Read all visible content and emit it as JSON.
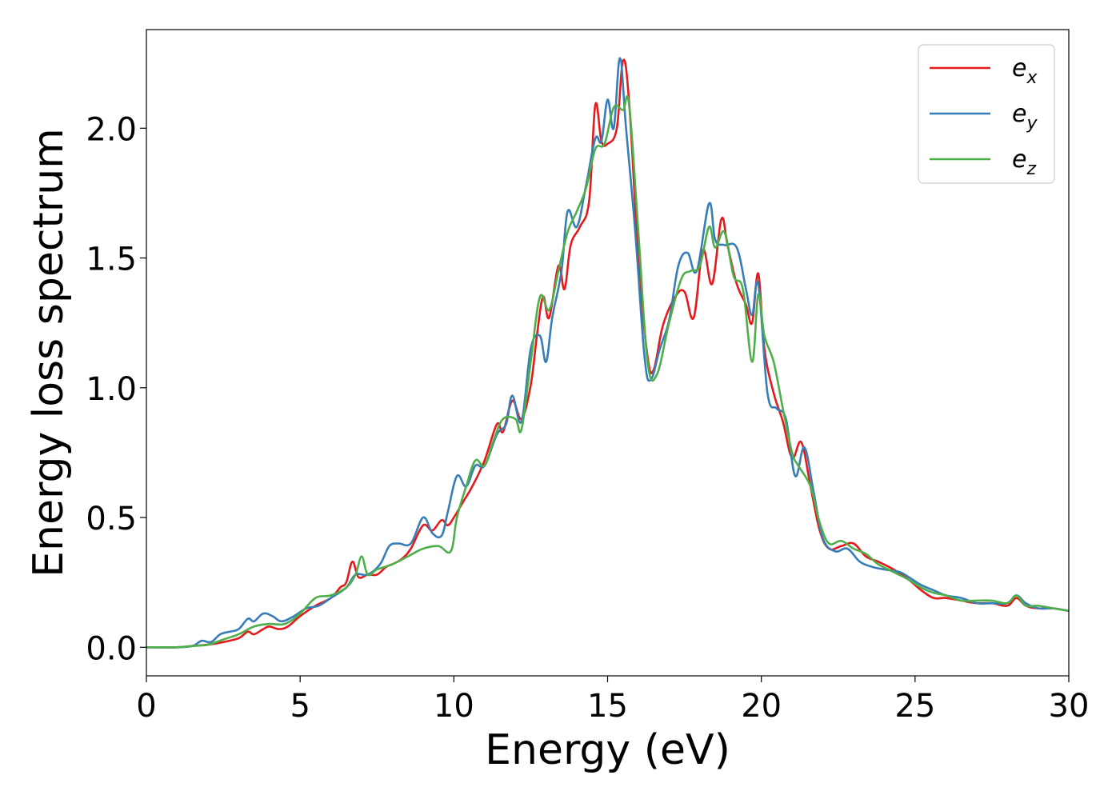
{
  "chart_data": {
    "type": "line",
    "title": "",
    "xlabel": "Energy (eV)",
    "ylabel": "Energy loss spectrum",
    "xlim": [
      0,
      30
    ],
    "ylim": [
      -0.11,
      2.38
    ],
    "xticks": [
      0,
      5,
      10,
      15,
      20,
      25,
      30
    ],
    "xtick_labels": [
      "0",
      "5",
      "10",
      "15",
      "20",
      "25",
      "30"
    ],
    "yticks": [
      0.0,
      0.5,
      1.0,
      1.5,
      2.0
    ],
    "ytick_labels": [
      "0.0",
      "0.5",
      "1.0",
      "1.5",
      "2.0"
    ],
    "grid": false,
    "legend_position": "top-right",
    "series": [
      {
        "name": "e_x",
        "legend_base": "e",
        "legend_sub": "x",
        "color": "#e41a1c",
        "points": [
          [
            0,
            0
          ],
          [
            1,
            0
          ],
          [
            1.5,
            0.005
          ],
          [
            2,
            0.01
          ],
          [
            2.5,
            0.02
          ],
          [
            3,
            0.035
          ],
          [
            3.3,
            0.06
          ],
          [
            3.5,
            0.05
          ],
          [
            3.8,
            0.07
          ],
          [
            4,
            0.08
          ],
          [
            4.3,
            0.07
          ],
          [
            4.6,
            0.08
          ],
          [
            5,
            0.12
          ],
          [
            5.5,
            0.16
          ],
          [
            6,
            0.19
          ],
          [
            6.3,
            0.23
          ],
          [
            6.5,
            0.25
          ],
          [
            6.7,
            0.33
          ],
          [
            6.9,
            0.27
          ],
          [
            7.2,
            0.28
          ],
          [
            7.5,
            0.28
          ],
          [
            7.8,
            0.31
          ],
          [
            8,
            0.32
          ],
          [
            8.3,
            0.34
          ],
          [
            8.6,
            0.38
          ],
          [
            9,
            0.47
          ],
          [
            9.3,
            0.45
          ],
          [
            9.6,
            0.49
          ],
          [
            9.8,
            0.47
          ],
          [
            10,
            0.5
          ],
          [
            10.3,
            0.56
          ],
          [
            10.6,
            0.62
          ],
          [
            11,
            0.72
          ],
          [
            11.4,
            0.86
          ],
          [
            11.6,
            0.83
          ],
          [
            11.9,
            0.95
          ],
          [
            12.2,
            0.88
          ],
          [
            12.5,
            1.01
          ],
          [
            12.7,
            1.2
          ],
          [
            12.9,
            1.35
          ],
          [
            13.1,
            1.27
          ],
          [
            13.4,
            1.47
          ],
          [
            13.6,
            1.38
          ],
          [
            13.8,
            1.55
          ],
          [
            14.1,
            1.62
          ],
          [
            14.4,
            1.72
          ],
          [
            14.6,
            2.09
          ],
          [
            14.8,
            1.95
          ],
          [
            15,
            1.94
          ],
          [
            15.3,
            2.0
          ],
          [
            15.5,
            2.26
          ],
          [
            15.7,
            2.1
          ],
          [
            16,
            1.5
          ],
          [
            16.3,
            1.12
          ],
          [
            16.5,
            1.07
          ],
          [
            16.8,
            1.24
          ],
          [
            17.2,
            1.35
          ],
          [
            17.5,
            1.37
          ],
          [
            17.8,
            1.27
          ],
          [
            18.1,
            1.53
          ],
          [
            18.4,
            1.4
          ],
          [
            18.7,
            1.65
          ],
          [
            18.9,
            1.55
          ],
          [
            19.2,
            1.4
          ],
          [
            19.5,
            1.32
          ],
          [
            19.7,
            1.25
          ],
          [
            19.9,
            1.44
          ],
          [
            20.1,
            1.15
          ],
          [
            20.4,
            0.98
          ],
          [
            20.7,
            0.87
          ],
          [
            21,
            0.73
          ],
          [
            21.3,
            0.79
          ],
          [
            21.6,
            0.62
          ],
          [
            21.9,
            0.45
          ],
          [
            22.2,
            0.38
          ],
          [
            22.6,
            0.39
          ],
          [
            23,
            0.4
          ],
          [
            23.4,
            0.35
          ],
          [
            23.8,
            0.33
          ],
          [
            24.3,
            0.3
          ],
          [
            24.8,
            0.26
          ],
          [
            25.2,
            0.22
          ],
          [
            25.6,
            0.19
          ],
          [
            26,
            0.19
          ],
          [
            26.5,
            0.18
          ],
          [
            27,
            0.17
          ],
          [
            27.5,
            0.17
          ],
          [
            28,
            0.16
          ],
          [
            28.3,
            0.19
          ],
          [
            28.6,
            0.16
          ],
          [
            29,
            0.15
          ],
          [
            29.5,
            0.15
          ],
          [
            30,
            0.14
          ]
        ]
      },
      {
        "name": "e_y",
        "legend_base": "e",
        "legend_sub": "y",
        "color": "#377eb8",
        "points": [
          [
            0,
            0
          ],
          [
            1,
            0
          ],
          [
            1.5,
            0.005
          ],
          [
            1.8,
            0.025
          ],
          [
            2.1,
            0.02
          ],
          [
            2.4,
            0.05
          ],
          [
            2.7,
            0.06
          ],
          [
            3,
            0.07
          ],
          [
            3.3,
            0.11
          ],
          [
            3.5,
            0.1
          ],
          [
            3.8,
            0.13
          ],
          [
            4.1,
            0.12
          ],
          [
            4.4,
            0.1
          ],
          [
            4.8,
            0.12
          ],
          [
            5.2,
            0.15
          ],
          [
            5.6,
            0.16
          ],
          [
            6,
            0.19
          ],
          [
            6.5,
            0.23
          ],
          [
            6.8,
            0.28
          ],
          [
            7.2,
            0.28
          ],
          [
            7.6,
            0.32
          ],
          [
            7.9,
            0.39
          ],
          [
            8.2,
            0.4
          ],
          [
            8.6,
            0.4
          ],
          [
            9,
            0.5
          ],
          [
            9.3,
            0.44
          ],
          [
            9.6,
            0.43
          ],
          [
            9.8,
            0.52
          ],
          [
            10.1,
            0.66
          ],
          [
            10.4,
            0.62
          ],
          [
            10.7,
            0.7
          ],
          [
            11,
            0.7
          ],
          [
            11.4,
            0.82
          ],
          [
            11.7,
            0.86
          ],
          [
            11.9,
            0.97
          ],
          [
            12.2,
            0.87
          ],
          [
            12.5,
            1.15
          ],
          [
            12.8,
            1.2
          ],
          [
            13,
            1.1
          ],
          [
            13.2,
            1.27
          ],
          [
            13.5,
            1.45
          ],
          [
            13.7,
            1.68
          ],
          [
            14,
            1.62
          ],
          [
            14.3,
            1.78
          ],
          [
            14.6,
            1.96
          ],
          [
            14.8,
            1.95
          ],
          [
            15,
            2.11
          ],
          [
            15.2,
            2.0
          ],
          [
            15.4,
            2.27
          ],
          [
            15.6,
            2.0
          ],
          [
            15.9,
            1.6
          ],
          [
            16.2,
            1.12
          ],
          [
            16.4,
            1.03
          ],
          [
            16.7,
            1.15
          ],
          [
            17,
            1.26
          ],
          [
            17.3,
            1.47
          ],
          [
            17.6,
            1.52
          ],
          [
            17.9,
            1.45
          ],
          [
            18.3,
            1.71
          ],
          [
            18.5,
            1.57
          ],
          [
            18.8,
            1.55
          ],
          [
            19.2,
            1.54
          ],
          [
            19.5,
            1.38
          ],
          [
            19.7,
            1.28
          ],
          [
            19.9,
            1.4
          ],
          [
            20.2,
            0.98
          ],
          [
            20.5,
            0.92
          ],
          [
            20.8,
            0.88
          ],
          [
            21.1,
            0.66
          ],
          [
            21.4,
            0.77
          ],
          [
            21.7,
            0.6
          ],
          [
            22,
            0.42
          ],
          [
            22.4,
            0.37
          ],
          [
            22.8,
            0.38
          ],
          [
            23.2,
            0.33
          ],
          [
            23.6,
            0.31
          ],
          [
            24,
            0.3
          ],
          [
            24.5,
            0.29
          ],
          [
            24.8,
            0.27
          ],
          [
            25.2,
            0.24
          ],
          [
            25.6,
            0.22
          ],
          [
            26,
            0.2
          ],
          [
            26.5,
            0.19
          ],
          [
            27,
            0.17
          ],
          [
            27.5,
            0.17
          ],
          [
            28,
            0.17
          ],
          [
            28.3,
            0.2
          ],
          [
            28.6,
            0.17
          ],
          [
            29,
            0.15
          ],
          [
            29.5,
            0.15
          ],
          [
            30,
            0.14
          ]
        ]
      },
      {
        "name": "e_z",
        "legend_base": "e",
        "legend_sub": "z",
        "color": "#4daf4a",
        "points": [
          [
            0,
            0
          ],
          [
            1,
            0
          ],
          [
            1.5,
            0.005
          ],
          [
            2,
            0.01
          ],
          [
            2.5,
            0.03
          ],
          [
            3,
            0.05
          ],
          [
            3.5,
            0.08
          ],
          [
            4,
            0.09
          ],
          [
            4.5,
            0.09
          ],
          [
            5,
            0.13
          ],
          [
            5.5,
            0.19
          ],
          [
            6,
            0.2
          ],
          [
            6.5,
            0.23
          ],
          [
            6.8,
            0.28
          ],
          [
            7,
            0.35
          ],
          [
            7.2,
            0.28
          ],
          [
            7.5,
            0.3
          ],
          [
            8,
            0.32
          ],
          [
            8.5,
            0.35
          ],
          [
            9,
            0.38
          ],
          [
            9.5,
            0.39
          ],
          [
            9.9,
            0.37
          ],
          [
            10.1,
            0.5
          ],
          [
            10.4,
            0.62
          ],
          [
            10.7,
            0.72
          ],
          [
            11,
            0.7
          ],
          [
            11.3,
            0.8
          ],
          [
            11.6,
            0.88
          ],
          [
            12,
            0.88
          ],
          [
            12.2,
            0.84
          ],
          [
            12.5,
            1.1
          ],
          [
            12.8,
            1.35
          ],
          [
            13.1,
            1.3
          ],
          [
            13.4,
            1.45
          ],
          [
            13.7,
            1.6
          ],
          [
            14,
            1.68
          ],
          [
            14.3,
            1.77
          ],
          [
            14.6,
            1.92
          ],
          [
            14.9,
            1.94
          ],
          [
            15.2,
            2.08
          ],
          [
            15.5,
            2.07
          ],
          [
            15.7,
            2.09
          ],
          [
            16,
            1.6
          ],
          [
            16.3,
            1.1
          ],
          [
            16.6,
            1.05
          ],
          [
            17,
            1.25
          ],
          [
            17.4,
            1.42
          ],
          [
            17.7,
            1.45
          ],
          [
            18,
            1.47
          ],
          [
            18.3,
            1.62
          ],
          [
            18.5,
            1.54
          ],
          [
            18.8,
            1.6
          ],
          [
            19.1,
            1.43
          ],
          [
            19.4,
            1.38
          ],
          [
            19.7,
            1.1
          ],
          [
            19.9,
            1.36
          ],
          [
            20.1,
            1.2
          ],
          [
            20.4,
            1.1
          ],
          [
            20.7,
            0.92
          ],
          [
            21,
            0.75
          ],
          [
            21.2,
            0.7
          ],
          [
            21.6,
            0.62
          ],
          [
            21.9,
            0.48
          ],
          [
            22.2,
            0.4
          ],
          [
            22.6,
            0.41
          ],
          [
            23,
            0.38
          ],
          [
            23.4,
            0.36
          ],
          [
            23.8,
            0.32
          ],
          [
            24.3,
            0.29
          ],
          [
            24.8,
            0.26
          ],
          [
            25.2,
            0.23
          ],
          [
            25.6,
            0.21
          ],
          [
            26,
            0.2
          ],
          [
            26.5,
            0.18
          ],
          [
            27,
            0.18
          ],
          [
            27.5,
            0.18
          ],
          [
            28,
            0.17
          ],
          [
            28.3,
            0.2
          ],
          [
            28.6,
            0.16
          ],
          [
            29,
            0.16
          ],
          [
            29.5,
            0.15
          ],
          [
            30,
            0.14
          ]
        ]
      }
    ]
  }
}
